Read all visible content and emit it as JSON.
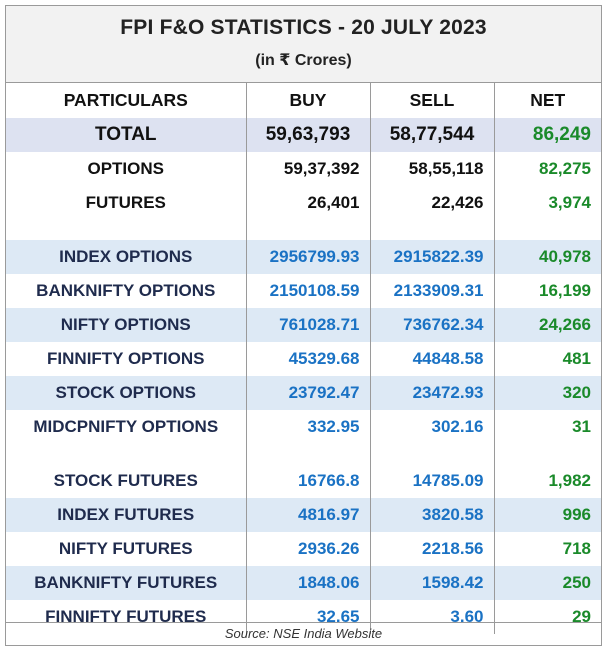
{
  "header": {
    "title": "FPI F&O STATISTICS - 20 JULY 2023",
    "subtitle": "(in ₹ Crores)"
  },
  "columns": {
    "particulars": "PARTICULARS",
    "buy": "BUY",
    "sell": "SELL",
    "net": "NET"
  },
  "total": {
    "name": "TOTAL",
    "buy": "59,63,793",
    "sell": "58,77,544",
    "net": "86,249"
  },
  "summary": [
    {
      "name": "OPTIONS",
      "buy": "59,37,392",
      "sell": "58,55,118",
      "net": "82,275"
    },
    {
      "name": "FUTURES",
      "buy": "26,401",
      "sell": "22,426",
      "net": "3,974"
    }
  ],
  "options": [
    {
      "name": "INDEX OPTIONS",
      "buy": "2956799.93",
      "sell": "2915822.39",
      "net": "40,978"
    },
    {
      "name": "BANKNIFTY OPTIONS",
      "buy": "2150108.59",
      "sell": "2133909.31",
      "net": "16,199"
    },
    {
      "name": "NIFTY OPTIONS",
      "buy": "761028.71",
      "sell": "736762.34",
      "net": "24,266"
    },
    {
      "name": "FINNIFTY OPTIONS",
      "buy": "45329.68",
      "sell": "44848.58",
      "net": "481"
    },
    {
      "name": "STOCK OPTIONS",
      "buy": "23792.47",
      "sell": "23472.93",
      "net": "320"
    },
    {
      "name": "MIDCPNIFTY OPTIONS",
      "buy": "332.95",
      "sell": "302.16",
      "net": "31"
    }
  ],
  "futures": [
    {
      "name": "STOCK FUTURES",
      "buy": "16766.8",
      "sell": "14785.09",
      "net": "1,982"
    },
    {
      "name": "INDEX FUTURES",
      "buy": "4816.97",
      "sell": "3820.58",
      "net": "996"
    },
    {
      "name": "NIFTY FUTURES",
      "buy": "2936.26",
      "sell": "2218.56",
      "net": "718"
    },
    {
      "name": "BANKNIFTY FUTURES",
      "buy": "1848.06",
      "sell": "1598.42",
      "net": "250"
    },
    {
      "name": "FINNIFTY FUTURES",
      "buy": "32.65",
      "sell": "3.60",
      "net": "29"
    }
  ],
  "footer": {
    "source": "Source: NSE India Website"
  },
  "colors": {
    "net_green": "#1a8a2a",
    "value_blue": "#1a72c4",
    "total_band": "#dde2f1",
    "row_band": "#dde9f5"
  }
}
